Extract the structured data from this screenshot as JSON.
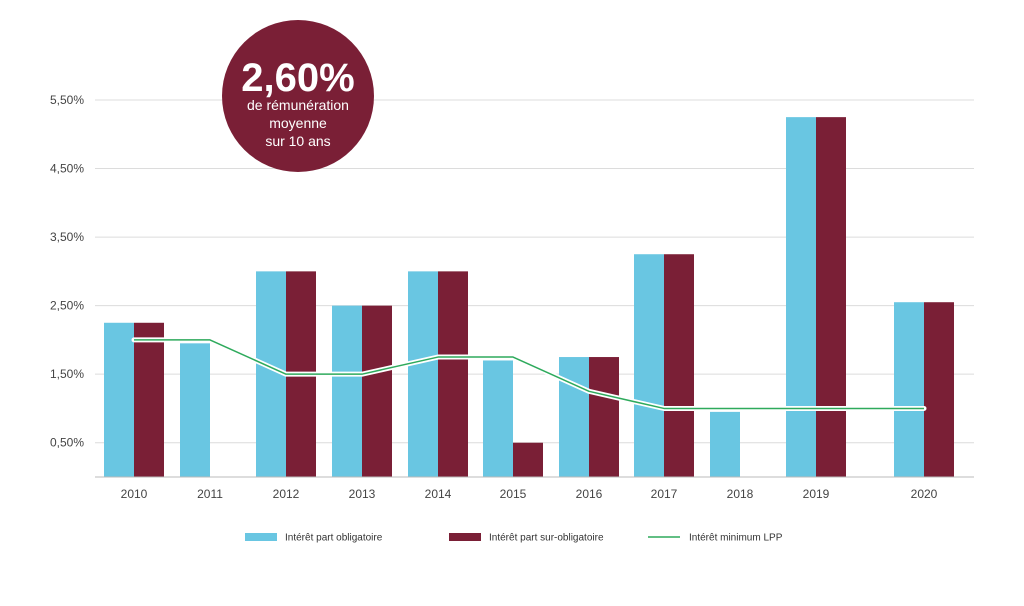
{
  "badge": {
    "value": "2,60%",
    "line1": "de rémunération",
    "line2": "moyenne",
    "line3": "sur 10 ans",
    "color": "#7a1f36"
  },
  "chart_data": {
    "type": "bar",
    "title": "",
    "xlabel": "",
    "ylabel": "",
    "categories": [
      "2010",
      "2011",
      "2012",
      "2013",
      "2014",
      "2015",
      "2016",
      "2017",
      "2018",
      "2019",
      "2020"
    ],
    "series": [
      {
        "name": "Intérêt part obligatoire",
        "type": "bar",
        "color": "#69c6e2",
        "values": [
          2.25,
          1.95,
          3.0,
          2.5,
          3.0,
          1.7,
          1.75,
          3.25,
          0.95,
          5.25,
          2.55
        ]
      },
      {
        "name": "Intérêt part sur-obligatoire",
        "type": "bar",
        "color": "#7a1f36",
        "values": [
          2.25,
          null,
          3.0,
          2.5,
          3.0,
          0.5,
          1.75,
          3.25,
          null,
          5.25,
          2.55
        ]
      },
      {
        "name": "Intérêt minimum LPP",
        "type": "line",
        "color": "#2eaa5c",
        "values": [
          2.0,
          2.0,
          1.5,
          1.5,
          1.75,
          1.75,
          1.25,
          1.0,
          1.0,
          1.0,
          1.0
        ]
      }
    ],
    "yticks": [
      "0,50%",
      "1,50%",
      "2,50%",
      "3,50%",
      "4,50%",
      "5,50%"
    ],
    "ytick_values": [
      0.5,
      1.5,
      2.5,
      3.5,
      4.5,
      5.5
    ],
    "ylim": [
      0,
      5.5
    ],
    "grid": true,
    "legend_position": "bottom"
  }
}
